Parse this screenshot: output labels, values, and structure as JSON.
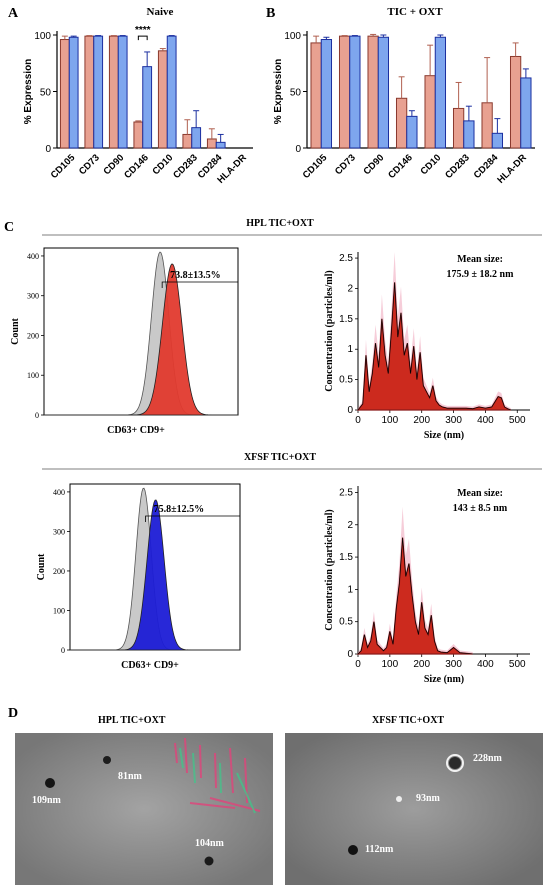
{
  "panels": {
    "A": "A",
    "B": "B",
    "C": "C",
    "D": "D"
  },
  "colors": {
    "salmon": "#e8a191",
    "blue": "#7ea6ee",
    "red": "#e23a2e",
    "navy": "#1c1cd6",
    "grey": "#b3b3b3",
    "nta_fill": "#f2b8c9",
    "nta_line": "#8b1a1a"
  },
  "chart_data": [
    {
      "type": "bar",
      "title": "Naive",
      "ylabel": "% Expression",
      "ylim": [
        0,
        100
      ],
      "yticks": [
        "0",
        "50",
        "100"
      ],
      "categories": [
        "CD105",
        "CD73",
        "CD90",
        "CD146",
        "CD10",
        "CD283",
        "CD284",
        "HLA-DR"
      ],
      "series": [
        {
          "values": [
            96,
            99,
            99,
            23,
            86,
            12,
            8,
            0
          ],
          "err": [
            3,
            0.5,
            0.5,
            1,
            2,
            13,
            9,
            0
          ]
        },
        {
          "values": [
            98,
            99,
            99,
            72,
            99,
            18,
            5,
            0
          ],
          "err": [
            1,
            0.5,
            0.5,
            13,
            0.5,
            15,
            7,
            0
          ]
        }
      ],
      "annotation": "****"
    },
    {
      "type": "bar",
      "title": "TIC + OXT",
      "ylabel": "% Expression",
      "ylim": [
        0,
        100
      ],
      "yticks": [
        "0",
        "50",
        "100"
      ],
      "categories": [
        "CD105",
        "CD73",
        "CD90",
        "CD146",
        "CD10",
        "CD283",
        "CD284",
        "HLA-DR"
      ],
      "series": [
        {
          "values": [
            93,
            99,
            99,
            44,
            64,
            35,
            40,
            81
          ],
          "err": [
            6,
            0.5,
            1.5,
            19,
            27,
            23,
            40,
            12
          ]
        },
        {
          "values": [
            96,
            99,
            98,
            28,
            98,
            24,
            13,
            62
          ],
          "err": [
            2,
            0.5,
            2,
            5,
            2,
            13,
            13,
            8
          ]
        }
      ]
    },
    {
      "type": "histogram",
      "section_title": "HPL TIC+OXT",
      "ylabel": "Count",
      "xlabel": "CD63+ CD9+",
      "yticks": [
        "0",
        "100",
        "200",
        "300",
        "400"
      ],
      "gate_label": "73.8±13.5%"
    },
    {
      "type": "area",
      "title": "Mean size:",
      "subtitle": "175.9 ± 18.2 nm",
      "ylabel": "Concentration (particles/ml)",
      "xlabel": "Size (nm)",
      "xticks": [
        "0",
        "100",
        "200",
        "300",
        "400",
        "500"
      ],
      "yticks": [
        "0",
        "0.5",
        "1",
        "1.5",
        "2",
        "2.5"
      ],
      "xlim": [
        0,
        540
      ],
      "ylim": [
        0,
        2.6
      ],
      "x": [
        0,
        15,
        25,
        35,
        45,
        55,
        65,
        75,
        85,
        95,
        105,
        115,
        125,
        135,
        145,
        155,
        165,
        175,
        185,
        195,
        205,
        215,
        225,
        235,
        245,
        255,
        265,
        280,
        300,
        320,
        340,
        360,
        380,
        400,
        420,
        440,
        450,
        460,
        470,
        480
      ],
      "y": [
        0,
        0.1,
        0.9,
        0.3,
        0.6,
        1.1,
        0.7,
        1.5,
        0.9,
        0.6,
        1.3,
        2.1,
        1.2,
        1.6,
        0.9,
        1.1,
        0.6,
        1.05,
        0.5,
        0.95,
        0.4,
        0.3,
        0.2,
        0.4,
        0.15,
        0.08,
        0.05,
        0.03,
        0.03,
        0.03,
        0.03,
        0.02,
        0.05,
        0.03,
        0.05,
        0.22,
        0.2,
        0.05,
        0.02,
        0
      ]
    },
    {
      "type": "histogram",
      "section_title": "XFSF TIC+OXT",
      "ylabel": "Count",
      "xlabel": "CD63+ CD9+",
      "yticks": [
        "0",
        "100",
        "200",
        "300",
        "400"
      ],
      "gate_label": "75.8±12.5%"
    },
    {
      "type": "area",
      "title": "Mean size:",
      "subtitle": "143 ± 8.5 nm",
      "ylabel": "Concentration (particles/ml)",
      "xlabel": "Size (nm)",
      "xticks": [
        "0",
        "100",
        "200",
        "300",
        "400",
        "500"
      ],
      "yticks": [
        "0",
        "0.5",
        "1",
        "1.5",
        "2",
        "2.5"
      ],
      "xlim": [
        0,
        540
      ],
      "ylim": [
        0,
        2.6
      ],
      "x": [
        0,
        10,
        20,
        30,
        40,
        50,
        60,
        70,
        80,
        90,
        100,
        110,
        120,
        130,
        140,
        150,
        160,
        170,
        180,
        190,
        200,
        210,
        220,
        230,
        240,
        250,
        260,
        280,
        300,
        320,
        340,
        360
      ],
      "y": [
        0,
        0.05,
        0.3,
        0.1,
        0.2,
        0.5,
        0.15,
        0.1,
        0.05,
        0.1,
        0.35,
        0.15,
        0.7,
        1.1,
        1.8,
        1.2,
        1.4,
        0.9,
        0.5,
        0.3,
        0.8,
        0.4,
        0.3,
        0.6,
        0.2,
        0.05,
        0.03,
        0.02,
        0.1,
        0.02,
        0.01,
        0
      ]
    }
  ],
  "tem": {
    "left": {
      "title": "HPL TIC+OXT",
      "labels": [
        "81nm",
        "109nm",
        "104nm"
      ]
    },
    "right": {
      "title": "XFSF TIC+OXT",
      "labels": [
        "228nm",
        "93nm",
        "112nm"
      ]
    }
  }
}
